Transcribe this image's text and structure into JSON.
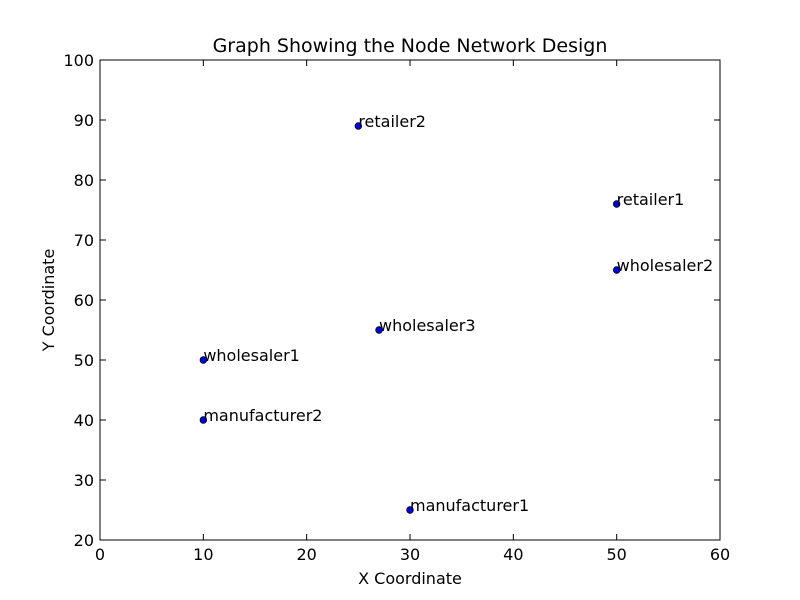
{
  "chart_data": {
    "type": "scatter",
    "title": "Graph Showing the Node Network Design",
    "xlabel": "X Coordinate",
    "ylabel": "Y Coordinate",
    "xlim": [
      0,
      60
    ],
    "ylim": [
      20,
      100
    ],
    "xticks": [
      "0",
      "10",
      "20",
      "30",
      "40",
      "50",
      "60"
    ],
    "yticks": [
      "20",
      "30",
      "40",
      "50",
      "60",
      "70",
      "80",
      "90",
      "100"
    ],
    "grid": false,
    "marker_color": "#0000ff",
    "points": [
      {
        "label": "retailer2",
        "x": 25,
        "y": 89
      },
      {
        "label": "retailer1",
        "x": 50,
        "y": 76
      },
      {
        "label": "wholesaler2",
        "x": 50,
        "y": 65
      },
      {
        "label": "wholesaler3",
        "x": 27,
        "y": 55
      },
      {
        "label": "wholesaler1",
        "x": 10,
        "y": 50
      },
      {
        "label": "manufacturer2",
        "x": 10,
        "y": 40
      },
      {
        "label": "manufacturer1",
        "x": 30,
        "y": 25
      }
    ]
  }
}
